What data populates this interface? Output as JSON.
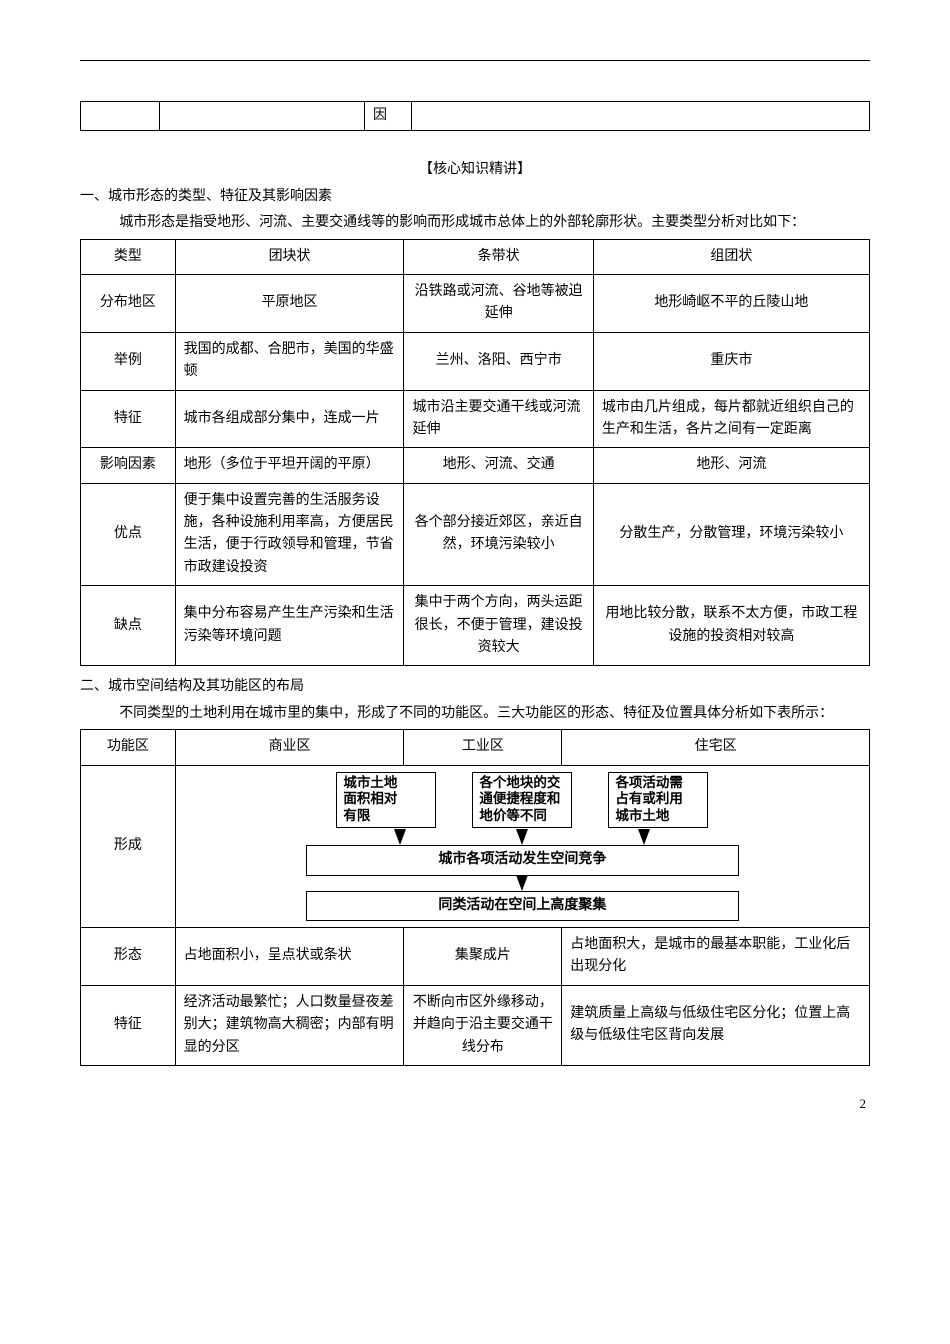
{
  "fragment_cell": "因",
  "section_title": "【核心知识精讲】",
  "heading1": "一、城市形态的类型、特征及其影响因素",
  "para1": "城市形态是指受地形、河流、主要交通线等的影响而形成城市总体上的外部轮廓形状。主要类型分析对比如下：",
  "table1": {
    "rows": [
      {
        "c1": "类型",
        "c2": "团块状",
        "c3": "条带状",
        "c4": "组团状",
        "a1": "center",
        "a2": "center",
        "a3": "center",
        "a4": "center"
      },
      {
        "c1": "分布地区",
        "c2": "平原地区",
        "c3": "沿铁路或河流、谷地等被迫延伸",
        "c4": "地形崎岖不平的丘陵山地",
        "a1": "center",
        "a2": "center",
        "a3": "center",
        "a4": "center"
      },
      {
        "c1": "举例",
        "c2": "我国的成都、合肥市，美国的华盛顿",
        "c3": "兰州、洛阳、西宁市",
        "c4": "重庆市",
        "a1": "center",
        "a2": "left",
        "a3": "center",
        "a4": "center"
      },
      {
        "c1": "特征",
        "c2": "城市各组成部分集中，连成一片",
        "c3": "城市沿主要交通干线或河流延伸",
        "c4": "城市由几片组成，每片都就近组织自己的生产和生活，各片之间有一定距离",
        "a1": "center",
        "a2": "left",
        "a3": "left",
        "a4": "left"
      },
      {
        "c1": "影响因素",
        "c2": "地形（多位于平坦开阔的平原）",
        "c3": "地形、河流、交通",
        "c4": "地形、河流",
        "a1": "center",
        "a2": "left",
        "a3": "center",
        "a4": "center"
      },
      {
        "c1": "优点",
        "c2": "便于集中设置完善的生活服务设施，各种设施利用率高，方便居民生活，便于行政领导和管理，节省市政建设投资",
        "c3": "各个部分接近郊区，亲近自然，环境污染较小",
        "c4": "分散生产，分散管理，环境污染较小",
        "a1": "center",
        "a2": "left",
        "a3": "center",
        "a4": "center"
      },
      {
        "c1": "缺点",
        "c2": "集中分布容易产生生产污染和生活污染等环境问题",
        "c3": "集中于两个方向，两头运距很长，不便于管理，建设投资较大",
        "c4": "用地比较分散，联系不太方便，市政工程设施的投资相对较高",
        "a1": "center",
        "a2": "left",
        "a3": "center",
        "a4": "center"
      }
    ]
  },
  "heading2": "二、城市空间结构及其功能区的布局",
  "para2": "不同类型的土地利用在城市里的集中，形成了不同的功能区。三大功能区的形态、特征及位置具体分析如下表所示：",
  "table2": {
    "header": {
      "c1": "功能区",
      "c2": "商业区",
      "c3": "工业区",
      "c4": "住宅区"
    },
    "formation_label": "形成",
    "diagram": {
      "box1": "城市土地\n面积相对\n有限",
      "box2": "各个地块的交\n通便捷程度和\n地价等不同",
      "box3": "各项活动需\n占有或利用\n城市土地",
      "mid": "城市各项活动发生空间竞争",
      "bottom": "同类活动在空间上高度聚集"
    },
    "shape_row": {
      "label": "形态",
      "c2": "占地面积小，呈点状或条状",
      "c3": "集聚成片",
      "c4": "占地面积大，是城市的最基本职能，工业化后出现分化"
    },
    "feature_row": {
      "label": "特征",
      "c2": "经济活动最繁忙；人口数量昼夜差别大；建筑物高大稠密；内部有明显的分区",
      "c3": "不断向市区外缘移动，并趋向于沿主要交通干线分布",
      "c4": "建筑质量上高级与低级住宅区分化；位置上高级与低级住宅区背向发展"
    },
    "col_widths": {
      "c1": "12%",
      "c2": "29%",
      "c3": "20%",
      "c4": "39%"
    }
  },
  "page_number": "2"
}
